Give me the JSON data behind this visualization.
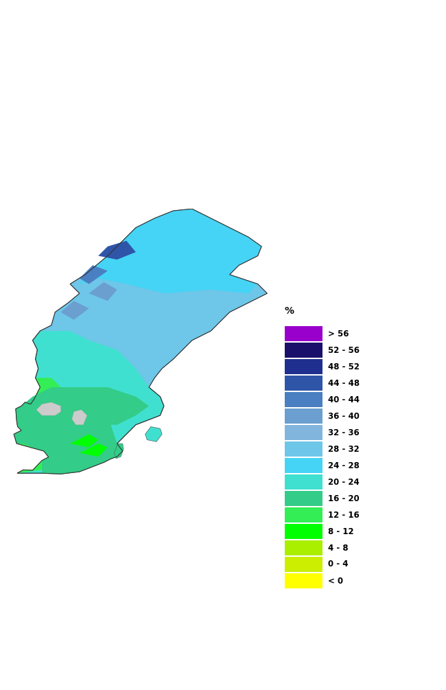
{
  "legend_title": "%",
  "legend_labels": [
    "> 56",
    "52 - 56",
    "48 - 52",
    "44 - 48",
    "40 - 44",
    "36 - 40",
    "32 - 36",
    "28 - 32",
    "24 - 28",
    "20 - 24",
    "16 - 20",
    "12 - 16",
    "8 - 12",
    "4 - 8",
    "0 - 4",
    "< 0"
  ],
  "legend_colors": [
    "#9900CC",
    "#1a0f6b",
    "#1e2f8f",
    "#2e55a8",
    "#4a7fc1",
    "#6a9fd0",
    "#82b5de",
    "#6ec6e8",
    "#45d4f5",
    "#40e0d0",
    "#33cc88",
    "#33ee55",
    "#00ff00",
    "#aaee00",
    "#ccee00",
    "#ffff00"
  ],
  "background_color": "#ffffff",
  "figsize": [
    6.5,
    10.05
  ],
  "dpi": 100,
  "xlim": [
    10.5,
    25.0
  ],
  "ylim": [
    55.0,
    69.5
  ]
}
